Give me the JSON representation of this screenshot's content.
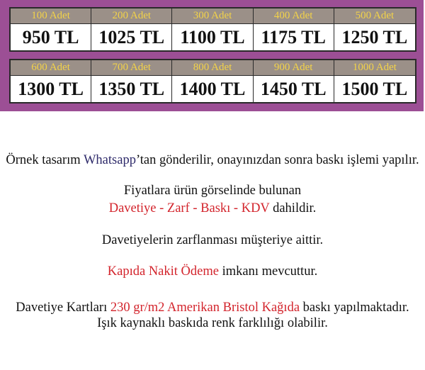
{
  "price_table": {
    "colors": {
      "frame": "#9c4f95",
      "header_bg": "#9b9088",
      "header_text": "#f3d348"
    },
    "rows": [
      [
        {
          "qty": "100 Adet",
          "price": "950 TL"
        },
        {
          "qty": "200 Adet",
          "price": "1025 TL"
        },
        {
          "qty": "300 Adet",
          "price": "1100 TL"
        },
        {
          "qty": "400 Adet",
          "price": "1175 TL"
        },
        {
          "qty": "500 Adet",
          "price": "1250 TL"
        }
      ],
      [
        {
          "qty": "600 Adet",
          "price": "1300 TL"
        },
        {
          "qty": "700 Adet",
          "price": "1350 TL"
        },
        {
          "qty": "800 Adet",
          "price": "1400 TL"
        },
        {
          "qty": "900 Adet",
          "price": "1450 TL"
        },
        {
          "qty": "1000 Adet",
          "price": "1500 TL"
        }
      ]
    ]
  },
  "notes": {
    "line1": {
      "a": "Örnek tasarım ",
      "b": "Whatsapp",
      "c": "’tan gönderilir, onayınızdan sonra baskı işlemi yapılır."
    },
    "line2": "Fiyatlara ürün görselinde bulunan",
    "line3": {
      "a": "Davetiye - Zarf - Baskı - KDV",
      "b": " dahildir."
    },
    "line4": "Davetiyelerin zarflanması müşteriye aittir.",
    "line5": {
      "a": "Kapıda Nakit Ödeme",
      "b": " imkanı mevcuttur."
    },
    "line6": {
      "a": "Davetiye Kartları ",
      "b": "230 gr/m2 Amerikan Bristol Kağıda",
      "c": " baskı yapılmaktadır."
    },
    "line7": "Işık kaynaklı baskıda renk farklılığı olabilir.",
    "colors": {
      "highlight_red": "#d3242c",
      "highlight_blue": "#2e2a6a"
    }
  }
}
